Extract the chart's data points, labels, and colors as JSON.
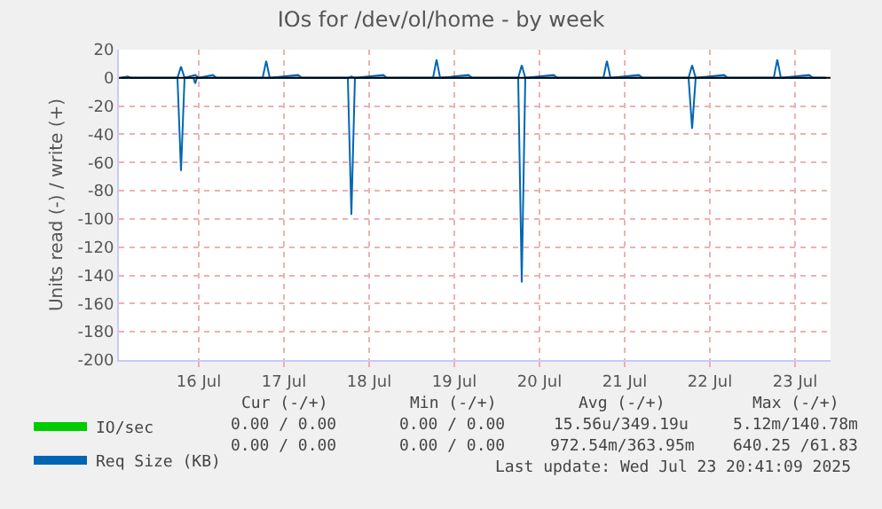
{
  "chart_data": {
    "type": "line",
    "title": "IOs for /dev/ol/home - by week",
    "ylabel": "Units read (-) / write (+)",
    "xlim": [
      "2025-07-15T13:30",
      "2025-07-23T22:00"
    ],
    "xticks": [
      {
        "value": "2025-07-16T12:00",
        "label": "16 Jul"
      },
      {
        "value": "2025-07-17T12:00",
        "label": "17 Jul"
      },
      {
        "value": "2025-07-18T12:00",
        "label": "18 Jul"
      },
      {
        "value": "2025-07-19T12:00",
        "label": "19 Jul"
      },
      {
        "value": "2025-07-20T12:00",
        "label": "20 Jul"
      },
      {
        "value": "2025-07-21T12:00",
        "label": "21 Jul"
      },
      {
        "value": "2025-07-22T12:00",
        "label": "22 Jul"
      },
      {
        "value": "2025-07-23T12:00",
        "label": "23 Jul"
      }
    ],
    "ylim": [
      -200,
      20
    ],
    "yticks": [
      -200,
      -180,
      -160,
      -140,
      -120,
      -100,
      -80,
      -60,
      -40,
      -20,
      0,
      20
    ],
    "grid": true,
    "legend": "bottom left",
    "marker": "none",
    "series": [
      {
        "name": "IO/sec",
        "color": "#00cc00",
        "values": [
          null
        ]
      },
      {
        "name": "Req Size (KB)",
        "color": "#0066b3",
        "x": [
          "2025-07-15T14:00",
          "2025-07-15T16:00",
          "2025-07-15T17:00",
          "2025-07-16T06:00",
          "2025-07-16T07:00",
          "2025-07-16T08:00",
          "2025-07-16T11:00",
          "2025-07-16T12:00",
          "2025-07-16T16:00",
          "2025-07-16T17:00",
          "2025-07-17T06:00",
          "2025-07-17T07:00",
          "2025-07-17T08:00",
          "2025-07-17T16:00",
          "2025-07-17T17:00",
          "2025-07-18T06:00",
          "2025-07-18T07:00",
          "2025-07-18T08:00",
          "2025-07-18T16:00",
          "2025-07-18T17:00",
          "2025-07-19T06:00",
          "2025-07-19T07:00",
          "2025-07-19T08:00",
          "2025-07-19T16:00",
          "2025-07-19T17:00",
          "2025-07-20T06:00",
          "2025-07-20T07:00",
          "2025-07-20T08:00",
          "2025-07-20T16:00",
          "2025-07-20T17:00",
          "2025-07-21T06:00",
          "2025-07-21T07:00",
          "2025-07-21T08:00",
          "2025-07-21T16:00",
          "2025-07-21T17:00",
          "2025-07-22T06:00",
          "2025-07-22T07:00",
          "2025-07-22T08:00",
          "2025-07-22T16:00",
          "2025-07-22T17:00",
          "2025-07-23T06:00",
          "2025-07-23T07:00",
          "2025-07-23T08:00",
          "2025-07-23T16:00",
          "2025-07-23T17:00",
          "2025-07-23T20:40"
        ],
        "values": [
          0,
          1,
          0,
          0,
          8,
          0,
          2,
          0,
          2,
          0,
          0,
          12,
          0,
          2,
          0,
          0,
          1,
          0,
          2,
          0,
          0,
          13,
          0,
          2,
          0,
          0,
          9,
          0,
          2,
          0,
          0,
          12,
          0,
          2,
          0,
          0,
          9,
          0,
          2,
          0,
          0,
          13,
          0,
          2,
          0,
          0
        ]
      },
      {
        "color": "#0066b3",
        "x": [
          "2025-07-15T14:00",
          "2025-07-16T06:00",
          "2025-07-16T07:00",
          "2025-07-16T08:00",
          "2025-07-16T10:30",
          "2025-07-16T11:00",
          "2025-07-16T11:30",
          "2025-07-18T06:00",
          "2025-07-18T07:00",
          "2025-07-18T08:00",
          "2025-07-20T06:00",
          "2025-07-20T07:00",
          "2025-07-20T08:00",
          "2025-07-22T06:00",
          "2025-07-22T07:00",
          "2025-07-22T08:00",
          "2025-07-23T20:40"
        ],
        "values": [
          0,
          0,
          -66,
          0,
          0,
          -4,
          0,
          0,
          -97,
          0,
          0,
          -145,
          0,
          0,
          -36,
          0,
          0
        ]
      }
    ],
    "ref_lines": [
      {
        "axis": "y",
        "value": 0,
        "color": "#000000"
      }
    ],
    "annotations": [
      "Cur (-/+)",
      "Min (-/+)",
      "Avg (-/+)",
      "Max (-/+)",
      "0.00 / 0.00",
      "0.00 / 0.00",
      "15.56u/349.19u",
      "5.12m/140.78m",
      "0.00 / 0.00",
      "0.00 / 0.00",
      "972.54m/363.95m",
      "640.25 /61.83",
      "Last update: Wed Jul 23 20:41:09 2025"
    ]
  }
}
